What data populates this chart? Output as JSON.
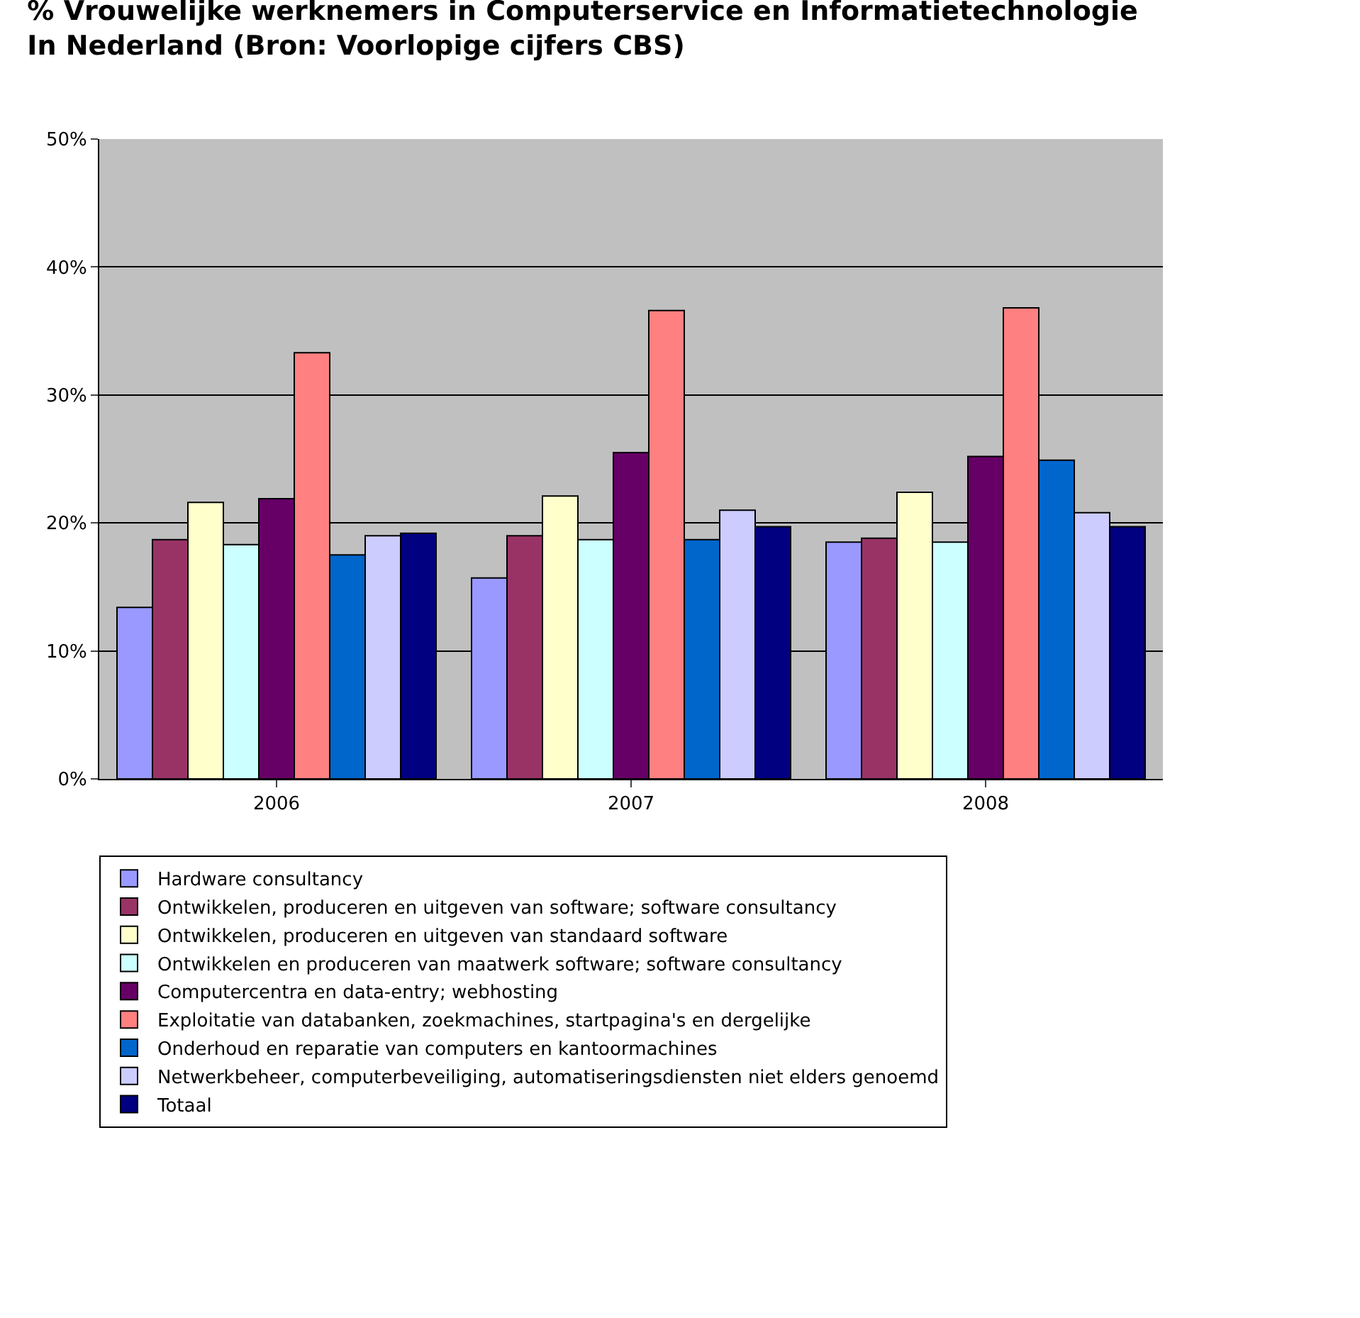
{
  "chart_data": {
    "type": "bar",
    "title": "% Vrouwelijke werknemers in Computerservice en Informatietechnologie\nIn Nederland (Bron: Voorlopige cijfers CBS)",
    "categories": [
      "2006",
      "2007",
      "2008"
    ],
    "series": [
      {
        "name": "Hardware consultancy",
        "color": "#9999ff",
        "values": [
          13.4,
          15.7,
          18.5
        ]
      },
      {
        "name": "Ontwikkelen, produceren en uitgeven van software; software consultancy",
        "color": "#993366",
        "values": [
          18.7,
          19.0,
          18.8
        ]
      },
      {
        "name": "Ontwikkelen, produceren en uitgeven van standaard software",
        "color": "#ffffcc",
        "values": [
          21.6,
          22.1,
          22.4
        ]
      },
      {
        "name": "Ontwikkelen en produceren van maatwerk software; software consultancy",
        "color": "#ccffff",
        "values": [
          18.3,
          18.7,
          18.5
        ]
      },
      {
        "name": "Computercentra en data-entry; webhosting",
        "color": "#660066",
        "values": [
          21.9,
          25.5,
          25.2
        ]
      },
      {
        "name": "Exploitatie van databanken, zoekmachines, startpagina's en dergelijke",
        "color": "#ff8080",
        "values": [
          33.3,
          36.6,
          36.8
        ]
      },
      {
        "name": "Onderhoud en reparatie van computers en kantoormachines",
        "color": "#0066cc",
        "values": [
          17.5,
          18.7,
          24.9
        ]
      },
      {
        "name": "Netwerkbeheer, computerbeveiliging, automatiseringsdiensten niet elders genoemd",
        "color": "#ccccff",
        "values": [
          19.0,
          21.0,
          20.8
        ]
      },
      {
        "name": "Totaal",
        "color": "#000080",
        "values": [
          19.2,
          19.7,
          19.7
        ]
      }
    ],
    "ylim": [
      0,
      50
    ],
    "yticks": [
      {
        "value": 0,
        "label": "0%"
      },
      {
        "value": 10,
        "label": "10%"
      },
      {
        "value": 20,
        "label": "20%"
      },
      {
        "value": 30,
        "label": "30%"
      },
      {
        "value": 40,
        "label": "40%"
      },
      {
        "value": 50,
        "label": "50%"
      }
    ],
    "grid": "y",
    "legend": "bottom"
  }
}
